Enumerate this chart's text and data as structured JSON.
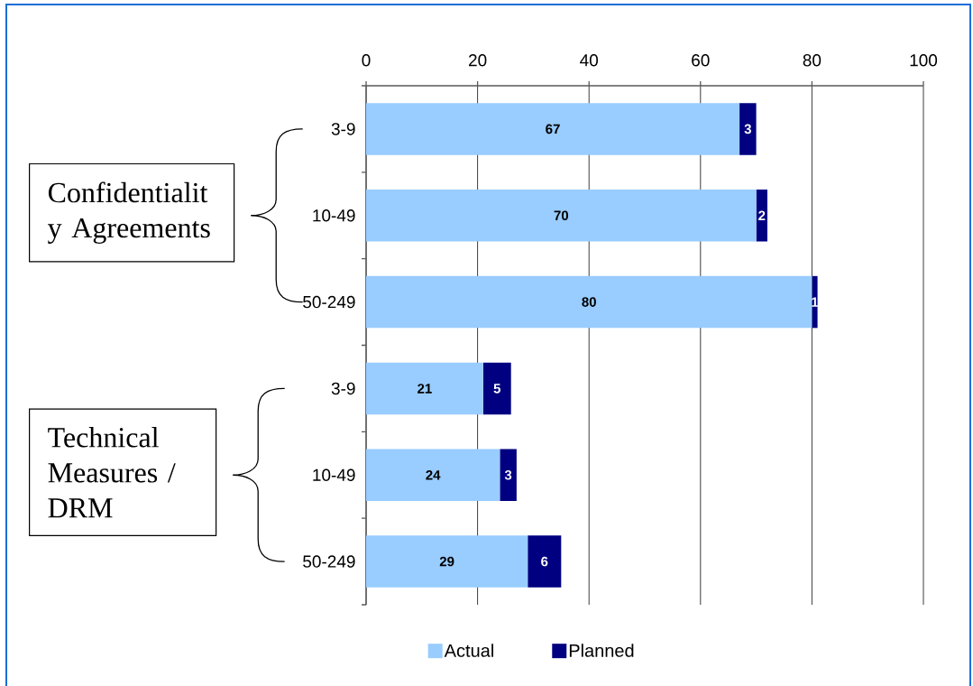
{
  "chart_data": {
    "type": "bar",
    "orientation": "horizontal",
    "stacked": true,
    "categories": [
      "3-9",
      "10-49",
      "50-249",
      "3-9",
      "10-49",
      "50-249"
    ],
    "series": [
      {
        "name": "Actual",
        "color": "#99ccff",
        "values": [
          67,
          70,
          80,
          21,
          24,
          29
        ]
      },
      {
        "name": "Planned",
        "color": "#000080",
        "values": [
          3,
          2,
          1,
          5,
          3,
          6
        ]
      }
    ],
    "xlim": [
      0,
      100
    ],
    "xticks": [
      0,
      20,
      40,
      60,
      80,
      100
    ],
    "grid": "x",
    "legend": "bottom",
    "data_labels": true,
    "annotations": [
      "Confidentialit y Agreements",
      "Technical Measures / DRM"
    ]
  }
}
